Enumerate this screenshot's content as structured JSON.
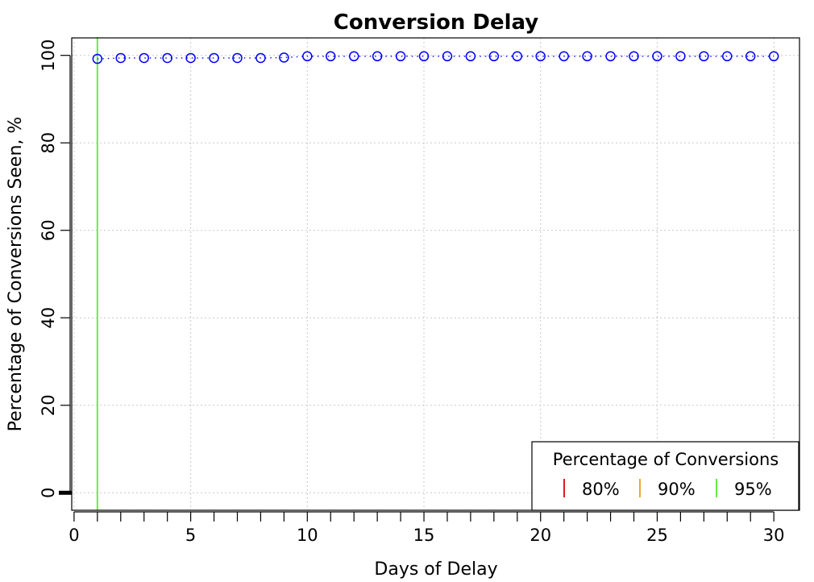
{
  "chart_data": {
    "type": "scatter",
    "title": "Conversion Delay",
    "xlabel": "Days of Delay",
    "ylabel": "Percentage of Conversions Seen, %",
    "xlim": [
      -0.1,
      31.1
    ],
    "ylim": [
      -4,
      104
    ],
    "x_ticks": [
      0,
      5,
      10,
      15,
      20,
      25,
      30
    ],
    "x_minor_ticks": [
      0,
      1,
      2,
      3,
      4,
      5,
      6,
      7,
      8,
      9,
      10,
      11,
      12,
      13,
      14,
      15,
      16,
      17,
      18,
      19,
      20,
      21,
      22,
      23,
      24,
      25,
      26,
      27,
      28,
      29,
      30
    ],
    "y_ticks": [
      0,
      20,
      40,
      60,
      80,
      100
    ],
    "grid": true,
    "series": [
      {
        "color": "#0000ff",
        "marker": "open-circle",
        "line": "dotted",
        "x": [
          1,
          2,
          3,
          4,
          5,
          6,
          7,
          8,
          9,
          10,
          11,
          12,
          13,
          14,
          15,
          16,
          17,
          18,
          19,
          20,
          21,
          22,
          23,
          24,
          25,
          26,
          27,
          28,
          29,
          30
        ],
        "y": [
          99.2,
          99.4,
          99.4,
          99.4,
          99.4,
          99.4,
          99.4,
          99.4,
          99.5,
          99.8,
          99.8,
          99.8,
          99.8,
          99.8,
          99.8,
          99.8,
          99.8,
          99.8,
          99.8,
          99.8,
          99.8,
          99.8,
          99.8,
          99.8,
          99.8,
          99.8,
          99.8,
          99.8,
          99.8,
          99.8
        ]
      }
    ],
    "thresholds": [
      {
        "label": "80%",
        "color": "#e31a1c",
        "day": null
      },
      {
        "label": "90%",
        "color": "#f0a830",
        "day": null
      },
      {
        "label": "95%",
        "color": "#66ee44",
        "day": 1
      }
    ],
    "legend": {
      "title": "Percentage of Conversions",
      "placement": "bottom-right"
    }
  }
}
